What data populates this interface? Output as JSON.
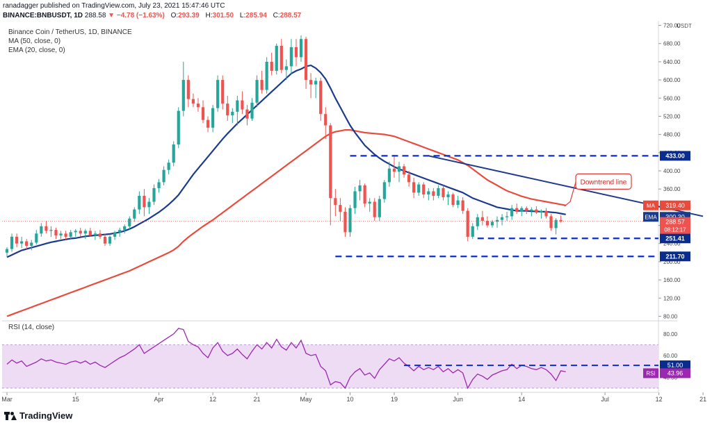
{
  "header": {
    "publisher_line": "ranadagger published on TradingView.com, July 23, 2021 15:47:46 UTC",
    "symbol": "BINANCE:BNBUSDT, 1D",
    "last": "288.58",
    "change": "▼ −4.78 (−1.63%)",
    "open_label": "O:",
    "open": "293.39",
    "high_label": "H:",
    "high": "301.50",
    "low_label": "L:",
    "low": "285.94",
    "close_label": "C:",
    "close": "288.57"
  },
  "legend": {
    "title": "Binance Coin / TetherUS, 1D, BINANCE",
    "ma": "MA (50, close, 0)",
    "ema": "EMA (20, close, 0)",
    "rsi": "RSI (14, close)"
  },
  "footer": {
    "brand": "TradingView"
  },
  "colors": {
    "up": "#26a69a",
    "down": "#ef5350",
    "ma": "#e84b3c",
    "ema": "#1a3a8c",
    "rsi": "#9c27b0",
    "rsi_band": "#eedcf5",
    "dashed": "#0a2cc8",
    "price_line": "#ef5350"
  },
  "chart_data": [
    {
      "type": "candlestick",
      "title": "Binance Coin / TetherUS, 1D, BINANCE",
      "currency": "USDT",
      "ylim": [
        70,
        730
      ],
      "y_ticks": [
        80,
        120,
        160,
        200,
        240,
        280,
        320,
        360,
        400,
        440,
        480,
        520,
        560,
        600,
        640,
        680,
        720
      ],
      "x_tick_labels": [
        "Mar",
        "15",
        "Apr",
        "12",
        "21",
        "May",
        "10",
        "19",
        "Jun",
        "14",
        "Jul",
        "12",
        "21"
      ],
      "x_ticks_day": [
        0,
        14,
        31,
        42,
        51,
        61,
        70,
        79,
        92,
        105,
        122,
        133,
        142
      ],
      "candles_ohlc": [
        [
          220,
          232,
          210,
          228
        ],
        [
          228,
          262,
          222,
          255
        ],
        [
          255,
          262,
          232,
          240
        ],
        [
          240,
          255,
          230,
          245
        ],
        [
          245,
          250,
          228,
          235
        ],
        [
          235,
          248,
          225,
          242
        ],
        [
          242,
          270,
          238,
          262
        ],
        [
          262,
          285,
          255,
          278
        ],
        [
          278,
          290,
          262,
          268
        ],
        [
          268,
          278,
          255,
          270
        ],
        [
          270,
          275,
          250,
          258
        ],
        [
          258,
          268,
          250,
          262
        ],
        [
          262,
          268,
          248,
          255
        ],
        [
          255,
          270,
          250,
          265
        ],
        [
          265,
          272,
          255,
          268
        ],
        [
          268,
          275,
          255,
          262
        ],
        [
          262,
          272,
          250,
          268
        ],
        [
          268,
          275,
          255,
          258
        ],
        [
          258,
          268,
          248,
          262
        ],
        [
          262,
          270,
          250,
          255
        ],
        [
          255,
          262,
          235,
          240
        ],
        [
          240,
          258,
          235,
          255
        ],
        [
          255,
          268,
          248,
          265
        ],
        [
          265,
          275,
          255,
          270
        ],
        [
          270,
          282,
          262,
          278
        ],
        [
          278,
          300,
          270,
          295
        ],
        [
          295,
          320,
          288,
          315
        ],
        [
          315,
          355,
          305,
          345
        ],
        [
          345,
          360,
          300,
          320
        ],
        [
          320,
          340,
          305,
          332
        ],
        [
          332,
          370,
          325,
          362
        ],
        [
          362,
          382,
          352,
          375
        ],
        [
          375,
          410,
          368,
          402
        ],
        [
          402,
          425,
          392,
          418
        ],
        [
          418,
          465,
          410,
          458
        ],
        [
          458,
          540,
          450,
          532
        ],
        [
          532,
          640,
          520,
          600
        ],
        [
          600,
          610,
          540,
          558
        ],
        [
          558,
          570,
          540,
          548
        ],
        [
          548,
          560,
          530,
          540
        ],
        [
          540,
          555,
          505,
          512
        ],
        [
          512,
          520,
          485,
          495
        ],
        [
          495,
          545,
          485,
          538
        ],
        [
          538,
          610,
          530,
          600
        ],
        [
          600,
          610,
          535,
          548
        ],
        [
          548,
          565,
          510,
          522
        ],
        [
          522,
          538,
          505,
          530
        ],
        [
          530,
          565,
          500,
          555
        ],
        [
          555,
          575,
          525,
          535
        ],
        [
          535,
          545,
          500,
          515
        ],
        [
          515,
          560,
          510,
          550
        ],
        [
          550,
          610,
          540,
          600
        ],
        [
          600,
          620,
          570,
          578
        ],
        [
          578,
          650,
          570,
          640
        ],
        [
          640,
          660,
          610,
          620
        ],
        [
          620,
          680,
          612,
          675
        ],
        [
          675,
          690,
          615,
          622
        ],
        [
          622,
          645,
          600,
          630
        ],
        [
          630,
          690,
          612,
          672
        ],
        [
          672,
          690,
          630,
          650
        ],
        [
          650,
          698,
          640,
          690
        ],
        [
          690,
          695,
          580,
          600
        ],
        [
          600,
          615,
          560,
          590
        ],
        [
          590,
          605,
          560,
          598
        ],
        [
          598,
          605,
          510,
          525
        ],
        [
          525,
          540,
          470,
          500
        ],
        [
          500,
          505,
          280,
          340
        ],
        [
          340,
          360,
          300,
          325
        ],
        [
          325,
          340,
          290,
          310
        ],
        [
          310,
          320,
          255,
          265
        ],
        [
          265,
          325,
          255,
          318
        ],
        [
          318,
          365,
          305,
          355
        ],
        [
          355,
          380,
          335,
          368
        ],
        [
          368,
          372,
          320,
          328
        ],
        [
          328,
          340,
          310,
          332
        ],
        [
          332,
          340,
          290,
          298
        ],
        [
          298,
          345,
          290,
          338
        ],
        [
          338,
          380,
          330,
          375
        ],
        [
          375,
          420,
          365,
          405
        ],
        [
          405,
          435,
          385,
          398
        ],
        [
          398,
          420,
          375,
          410
        ],
        [
          410,
          415,
          385,
          392
        ],
        [
          392,
          400,
          365,
          375
        ],
        [
          375,
          385,
          340,
          352
        ],
        [
          352,
          375,
          345,
          370
        ],
        [
          370,
          375,
          340,
          348
        ],
        [
          348,
          362,
          335,
          355
        ],
        [
          355,
          362,
          335,
          345
        ],
        [
          345,
          368,
          340,
          362
        ],
        [
          362,
          368,
          335,
          342
        ],
        [
          342,
          355,
          325,
          348
        ],
        [
          348,
          352,
          320,
          325
        ],
        [
          325,
          345,
          318,
          335
        ],
        [
          335,
          342,
          305,
          312
        ],
        [
          312,
          318,
          245,
          255
        ],
        [
          255,
          285,
          250,
          278
        ],
        [
          278,
          305,
          270,
          298
        ],
        [
          298,
          312,
          280,
          290
        ],
        [
          290,
          300,
          275,
          280
        ],
        [
          280,
          292,
          275,
          288
        ],
        [
          288,
          300,
          275,
          292
        ],
        [
          292,
          305,
          280,
          298
        ],
        [
          298,
          310,
          290,
          300
        ],
        [
          300,
          325,
          292,
          318
        ],
        [
          318,
          328,
          305,
          310
        ],
        [
          310,
          322,
          300,
          318
        ],
        [
          318,
          322,
          305,
          312
        ],
        [
          312,
          320,
          300,
          315
        ],
        [
          315,
          322,
          305,
          308
        ],
        [
          308,
          315,
          295,
          312
        ],
        [
          312,
          318,
          295,
          300
        ],
        [
          300,
          305,
          268,
          274
        ],
        [
          274,
          296,
          260,
          292
        ],
        [
          292,
          302,
          286,
          289
        ]
      ]
    },
    {
      "type": "line",
      "title": "RSI (14, close)",
      "ylim": [
        28,
        92
      ],
      "y_ticks": [
        40,
        60,
        80
      ],
      "band": [
        30,
        70
      ],
      "series": [
        {
          "name": "RSI",
          "values": [
            52,
            56,
            53,
            55,
            50,
            52,
            54,
            57,
            55,
            56,
            54,
            53,
            52,
            54,
            55,
            53,
            55,
            52,
            54,
            51,
            49,
            52,
            55,
            58,
            60,
            63,
            66,
            70,
            62,
            65,
            68,
            71,
            74,
            77,
            80,
            85,
            84,
            73,
            70,
            68,
            62,
            58,
            67,
            72,
            64,
            60,
            62,
            66,
            61,
            57,
            64,
            70,
            66,
            72,
            67,
            75,
            68,
            65,
            72,
            67,
            74,
            62,
            60,
            61,
            50,
            46,
            33,
            36,
            35,
            30,
            40,
            45,
            48,
            42,
            44,
            39,
            47,
            52,
            57,
            55,
            58,
            53,
            50,
            46,
            50,
            47,
            49,
            47,
            50,
            45,
            48,
            44,
            47,
            44,
            30,
            38,
            43,
            41,
            38,
            42,
            44,
            46,
            47,
            52,
            48,
            51,
            50,
            48,
            47,
            49,
            47,
            43,
            37,
            46,
            45
          ]
        }
      ],
      "value_label": "43.96",
      "level_line": 51.0
    }
  ],
  "overlays": {
    "ma_values": [
      80,
      84,
      88,
      92,
      96,
      100,
      104,
      108,
      112,
      116,
      120,
      124,
      128,
      132,
      136,
      140,
      144,
      148,
      152,
      156,
      160,
      164,
      168,
      172,
      176,
      180,
      185,
      190,
      195,
      200,
      205,
      210,
      215,
      220,
      226,
      234,
      245,
      254,
      262,
      270,
      278,
      285,
      292,
      300,
      308,
      316,
      324,
      332,
      340,
      348,
      356,
      364,
      372,
      380,
      388,
      396,
      404,
      412,
      420,
      428,
      436,
      444,
      452,
      460,
      468,
      476,
      482,
      486,
      488,
      490,
      490,
      488,
      486,
      484,
      483,
      482,
      481,
      480,
      478,
      476,
      472,
      468,
      464,
      460,
      456,
      452,
      448,
      444,
      440,
      436,
      432,
      428,
      424,
      418,
      412,
      404,
      396,
      388,
      380,
      374,
      368,
      362,
      356,
      352,
      348,
      344,
      341,
      338,
      336,
      334,
      332,
      330,
      328,
      326,
      324
    ],
    "ema_values": [
      210,
      215,
      220,
      225,
      228,
      231,
      234,
      237,
      240,
      243,
      245,
      247,
      249,
      251,
      252,
      254,
      256,
      257,
      258,
      259,
      260,
      261,
      263,
      265,
      268,
      272,
      277,
      283,
      289,
      295,
      302,
      309,
      317,
      326,
      336,
      347,
      362,
      377,
      392,
      405,
      418,
      431,
      444,
      457,
      470,
      482,
      493,
      504,
      514,
      524,
      534,
      544,
      554,
      564,
      574,
      584,
      594,
      604,
      614,
      620,
      624,
      630,
      632,
      626,
      616,
      602,
      582,
      560,
      540,
      520,
      500,
      484,
      470,
      456,
      446,
      436,
      428,
      421,
      415,
      409,
      404,
      400,
      396,
      392,
      388,
      384,
      380,
      376,
      372,
      368,
      364,
      360,
      356,
      352,
      346,
      340,
      336,
      332,
      328,
      324,
      320,
      318,
      316,
      314,
      312,
      312,
      312,
      311,
      311,
      310,
      310,
      309,
      308,
      306,
      304
    ],
    "ma_value_label": "319.40",
    "ema_value_label": "300.30",
    "last_price_label": "288.57",
    "countdown_label": "08:12:17",
    "ma_tag": "MA",
    "ema_tag": "EMA",
    "rsi_tag": "RSI",
    "levels": [
      {
        "value": 433.0,
        "label": "433.00",
        "start_day": 70
      },
      {
        "value": 251.41,
        "label": "251.41",
        "start_day": 96
      },
      {
        "value": 211.7,
        "label": "211.70",
        "start_day": 67
      }
    ],
    "rsi_level_label": "51.00",
    "trendline": {
      "from_day": 86,
      "from_value": 433,
      "to_day": 142,
      "to_value": 300
    },
    "annotation": "Downtrend line"
  }
}
